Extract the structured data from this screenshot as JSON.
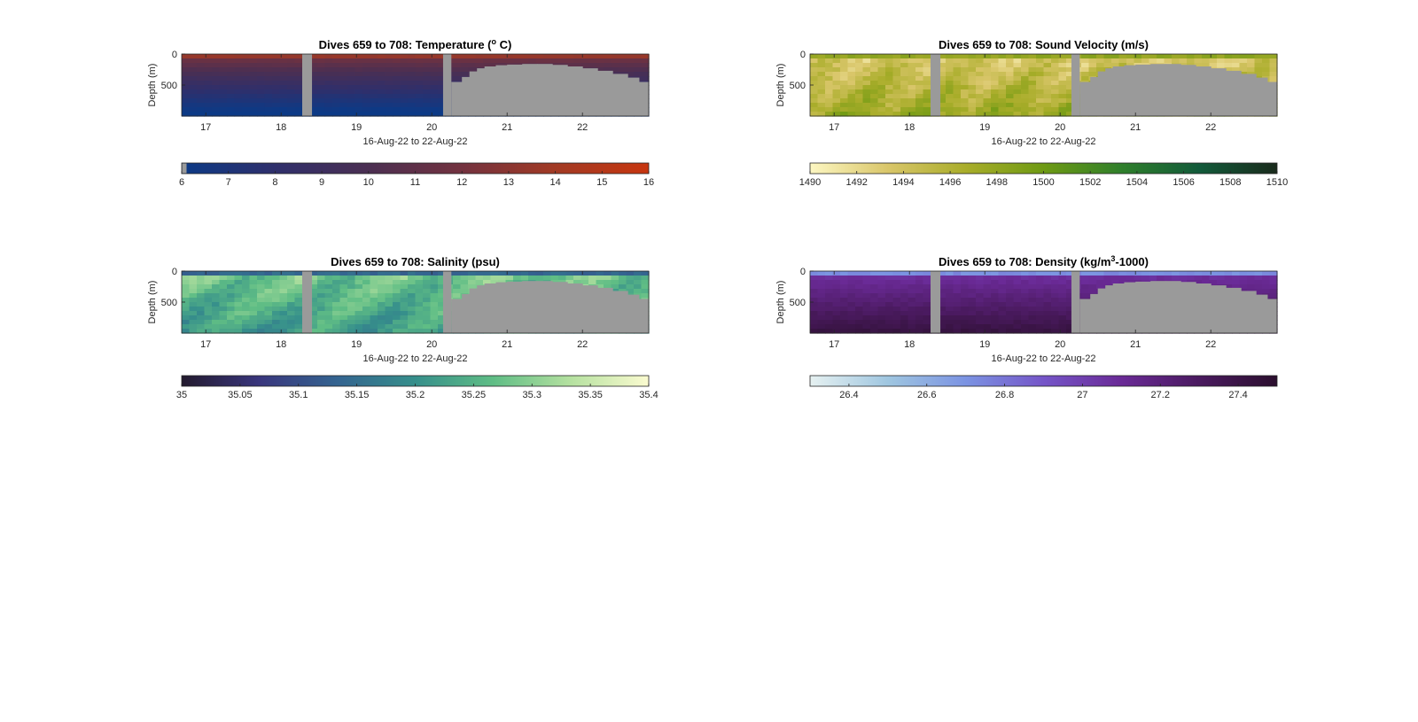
{
  "chart_data": [
    {
      "type": "heatmap",
      "title": "Dives 659 to 708: Temperature (",
      "title_sup": "o",
      "title_suffix": " C)",
      "xlabel": "16-Aug-22 to 22-Aug-22",
      "ylabel": "Depth (m)",
      "x_ticks": [
        "17",
        "18",
        "19",
        "20",
        "21",
        "22"
      ],
      "xlim": [
        16.68,
        22.88
      ],
      "y_ticks": [
        "0",
        "500"
      ],
      "ylim": [
        0,
        1000
      ],
      "y_reversed": true,
      "colorbar": {
        "colormap": "thermal",
        "range": [
          6,
          16
        ],
        "ticks": [
          "6",
          "7",
          "8",
          "9",
          "10",
          "11",
          "12",
          "13",
          "14",
          "15",
          "16"
        ],
        "colors": [
          "#0c3a86",
          "#2f2f6b",
          "#4b2f52",
          "#73323f",
          "#a23a24",
          "#c7360f"
        ]
      },
      "field": "temperature"
    },
    {
      "type": "heatmap",
      "title": "Dives 659 to 708: Sound Velocity (m/s)",
      "title_sup": "",
      "title_suffix": "",
      "xlabel": "16-Aug-22 to 22-Aug-22",
      "ylabel": "Depth (m)",
      "x_ticks": [
        "17",
        "18",
        "19",
        "20",
        "21",
        "22"
      ],
      "xlim": [
        16.68,
        22.88
      ],
      "y_ticks": [
        "0",
        "500"
      ],
      "ylim": [
        0,
        1000
      ],
      "y_reversed": true,
      "colorbar": {
        "colormap": "speed",
        "range": [
          1490,
          1510
        ],
        "ticks": [
          "1490",
          "1492",
          "1494",
          "1496",
          "1498",
          "1500",
          "1502",
          "1504",
          "1506",
          "1508",
          "1510"
        ],
        "colors": [
          "#fdf7c2",
          "#d9c66a",
          "#a9ad2a",
          "#6e9a13",
          "#2f7f2b",
          "#125a3a",
          "#1a2b1c"
        ]
      },
      "field": "sound_velocity"
    },
    {
      "type": "heatmap",
      "title": "Dives 659 to 708: Salinity (psu)",
      "title_sup": "",
      "title_suffix": "",
      "xlabel": "16-Aug-22 to 22-Aug-22",
      "ylabel": "Depth (m)",
      "x_ticks": [
        "17",
        "18",
        "19",
        "20",
        "21",
        "22"
      ],
      "xlim": [
        16.68,
        22.88
      ],
      "y_ticks": [
        "0",
        "500"
      ],
      "ylim": [
        0,
        1000
      ],
      "y_reversed": true,
      "colorbar": {
        "colormap": "haline",
        "range": [
          35,
          35.4
        ],
        "ticks": [
          "35",
          "35.05",
          "35.1",
          "35.15",
          "35.2",
          "35.25",
          "35.3",
          "35.35",
          "35.4"
        ],
        "colors": [
          "#231a2e",
          "#39367d",
          "#346490",
          "#368f8b",
          "#5fbd85",
          "#b5e1a0",
          "#fbfbd0"
        ]
      },
      "field": "salinity"
    },
    {
      "type": "heatmap",
      "title": "Dives 659 to 708: Density (kg/m",
      "title_sup": "3",
      "title_suffix": "-1000)",
      "xlabel": "16-Aug-22 to 22-Aug-22",
      "ylabel": "Depth (m)",
      "x_ticks": [
        "17",
        "18",
        "19",
        "20",
        "21",
        "22"
      ],
      "xlim": [
        16.68,
        22.88
      ],
      "y_ticks": [
        "0",
        "500"
      ],
      "ylim": [
        0,
        1000
      ],
      "y_reversed": true,
      "colorbar": {
        "colormap": "dense",
        "range": [
          26.3,
          27.5
        ],
        "ticks": [
          "26.4",
          "26.6",
          "26.8",
          "27",
          "27.2",
          "27.4"
        ],
        "tick_values": [
          26.4,
          26.6,
          26.8,
          27.0,
          27.2,
          27.4
        ],
        "colors": [
          "#e6f1f1",
          "#9fc6e0",
          "#7b93e2",
          "#7555c8",
          "#6a2a96",
          "#4a1a5f",
          "#2b0f2e"
        ]
      },
      "field": "density"
    }
  ],
  "nodata": {
    "color": "#9a9a9a",
    "gap_columns": [
      [
        18.28,
        18.41
      ],
      [
        20.15,
        20.26
      ]
    ],
    "shallow_section": {
      "x": [
        20.26,
        20.4,
        20.5,
        20.6,
        20.7,
        20.85,
        21.0,
        21.2,
        21.4,
        21.6,
        21.8,
        22.0,
        22.2,
        22.4,
        22.6,
        22.75,
        22.88
      ],
      "max_depth_m": [
        450,
        370,
        280,
        230,
        200,
        180,
        170,
        160,
        160,
        175,
        200,
        230,
        270,
        320,
        380,
        450,
        520
      ]
    }
  }
}
